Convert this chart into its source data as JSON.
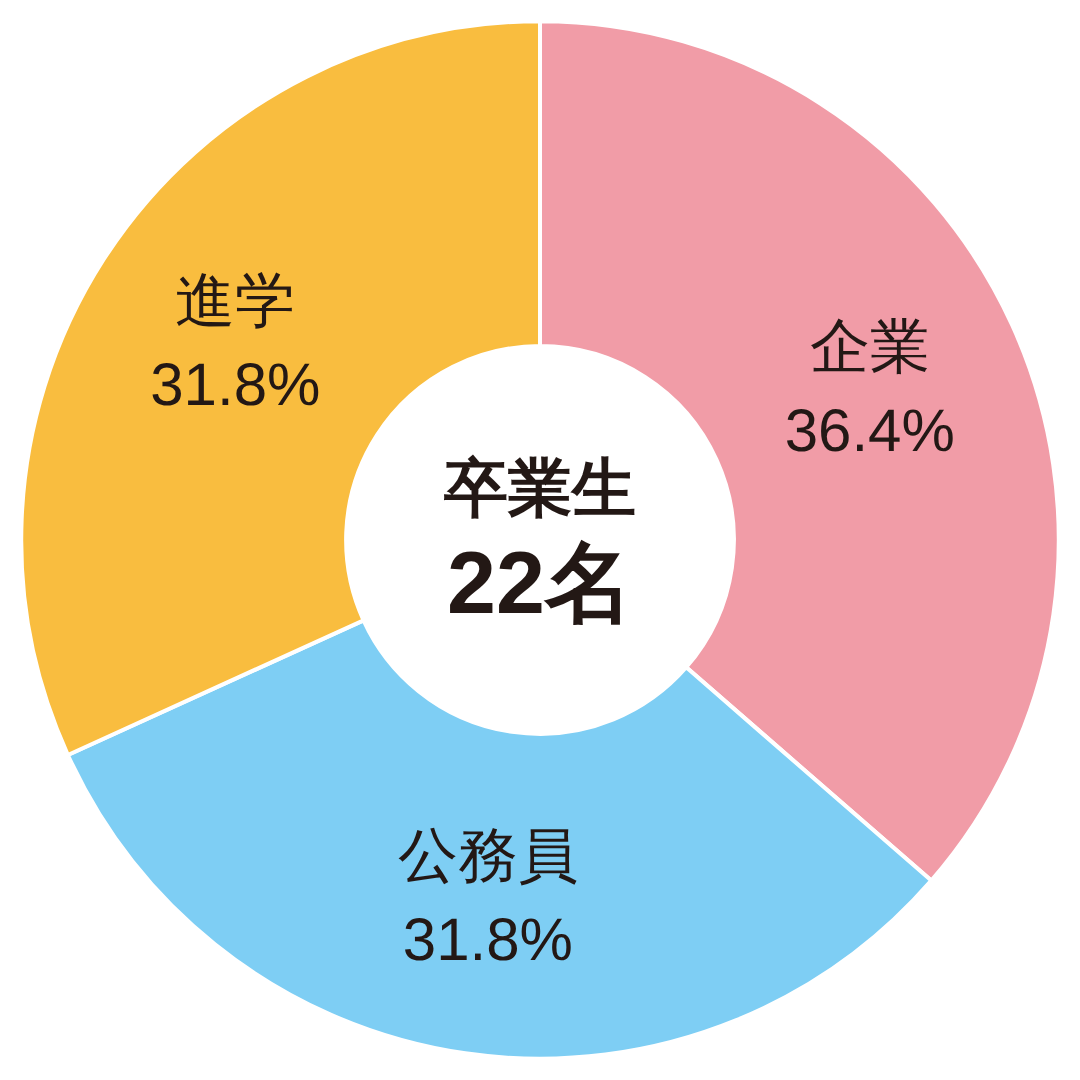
{
  "chart_data": {
    "type": "donut",
    "categories": [
      "企業",
      "公務員",
      "進学"
    ],
    "values": [
      36.4,
      31.8,
      31.8
    ],
    "colors": [
      "#f19ca7",
      "#7ecef4",
      "#f9bd3f"
    ],
    "value_labels": [
      "36.4%",
      "31.8%",
      "31.8%"
    ],
    "annotations": [
      "卒業生",
      "22名"
    ],
    "legend": false
  }
}
